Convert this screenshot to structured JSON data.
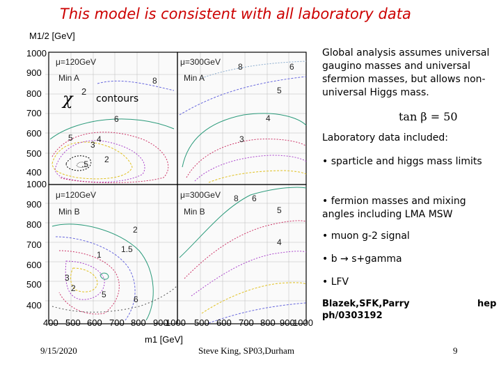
{
  "slide": {
    "title": "This model is consistent with all laboratory data",
    "figure": {
      "y_axis_label": "M1/2 [GeV]",
      "x_axis_label": "m1 [GeV]",
      "contours_label": "contours",
      "chi_symbol": "χ",
      "chi_power": "2",
      "y_ticks_top": [
        "1000",
        "900",
        "800",
        "700",
        "600",
        "500",
        "400"
      ],
      "y_ticks_bottom": [
        "1000",
        "900",
        "800",
        "700",
        "600",
        "500",
        "400"
      ],
      "x_ticks": [
        "400",
        "500",
        "600",
        "700",
        "800",
        "900",
        "1000",
        "500",
        "600",
        "700",
        "800",
        "900",
        "1000"
      ],
      "panels": [
        {
          "mu": "μ=120GeV",
          "min": "Min A",
          "numbers": [
            "8",
            "6",
            "5",
            "4",
            "3",
            "2",
            ".5"
          ]
        },
        {
          "mu": "μ=300GeV",
          "min": "Min A",
          "numbers": [
            "8",
            "6",
            "5",
            "4",
            "3"
          ]
        },
        {
          "mu": "μ=120GeV",
          "min": "Min B",
          "numbers": [
            "2",
            "1.5",
            "1",
            "3",
            "2",
            "5",
            "6"
          ]
        },
        {
          "mu": "μ=300GeV",
          "min": "Min B",
          "numbers": [
            "8",
            "6",
            "5",
            "4"
          ]
        }
      ]
    },
    "right_panel": {
      "intro": "Global analysis assumes universal gaugino masses and universal sfermion masses, but allows non-universal Higgs mass.",
      "tan_beta": "tan β = 50",
      "lab_heading": "Laboratory data included:",
      "bullets": [
        "• sparticle and higgs mass limits",
        "• fermion masses and mixing angles including LMA MSW",
        "• muon g-2 signal",
        "• b → s+gamma",
        "• LFV"
      ],
      "reference_left": "Blazek,SFK,Parry",
      "reference_right": "hep",
      "reference_line2": "ph/0303192"
    },
    "footer": {
      "date": "9/15/2020",
      "author": "Steve King, SP03,Durham",
      "page": "9"
    }
  }
}
